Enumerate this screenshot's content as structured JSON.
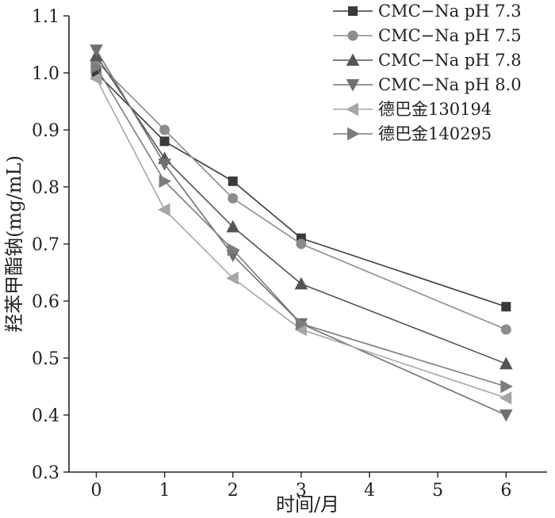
{
  "chart_data": {
    "type": "line",
    "title": "",
    "xlabel": "时间/月",
    "ylabel": "羟苯甲酯钠(mg/mL)",
    "xlim": [
      -0.4,
      6.6
    ],
    "ylim": [
      0.3,
      1.1
    ],
    "x_ticks": [
      0,
      1,
      2,
      3,
      4,
      5,
      6
    ],
    "y_ticks": [
      "0.3",
      "0.4",
      "0.5",
      "0.6",
      "0.7",
      "0.8",
      "0.9",
      "1.0",
      "1.1"
    ],
    "grid": false,
    "legend_position": "top-right",
    "series": [
      {
        "name": "CMC−Na pH 7.3",
        "marker": "square",
        "color": "#3a3a3a",
        "x": [
          0,
          1,
          2,
          3,
          6
        ],
        "values": [
          1.0,
          0.88,
          0.81,
          0.71,
          0.59
        ]
      },
      {
        "name": "CMC−Na pH 7.5",
        "marker": "circle",
        "color": "#8c8c8c",
        "x": [
          0,
          1,
          2,
          3,
          6
        ],
        "values": [
          1.02,
          0.9,
          0.78,
          0.7,
          0.55
        ]
      },
      {
        "name": "CMC−Na pH 7.8",
        "marker": "triangle-up",
        "color": "#555555",
        "x": [
          0,
          1,
          2,
          3,
          6
        ],
        "values": [
          1.03,
          0.85,
          0.73,
          0.63,
          0.49
        ]
      },
      {
        "name": "CMC−Na pH 8.0",
        "marker": "triangle-down",
        "color": "#707070",
        "x": [
          0,
          1,
          2,
          3,
          6
        ],
        "values": [
          1.04,
          0.84,
          0.68,
          0.56,
          0.4
        ]
      },
      {
        "name": "德巴金130194",
        "marker": "triangle-left",
        "color": "#a6a6a6",
        "x": [
          0,
          1,
          2,
          3,
          6
        ],
        "values": [
          0.99,
          0.76,
          0.64,
          0.55,
          0.43
        ]
      },
      {
        "name": "德巴金140295",
        "marker": "triangle-right",
        "color": "#7c7c7c",
        "x": [
          0,
          1,
          2,
          3,
          6
        ],
        "values": [
          1.01,
          0.81,
          0.69,
          0.56,
          0.45
        ]
      }
    ]
  }
}
